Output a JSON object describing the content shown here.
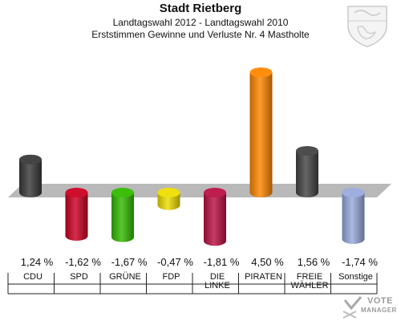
{
  "header": {
    "title": "Stadt Rietberg",
    "subtitle1": "Landtagswahl 2012 - Landtagswahl 2010",
    "subtitle2": "Erststimmen Gewinne und Verluste Nr. 4 Mastholte"
  },
  "logo": {
    "line1": "VOTE",
    "line2": "MANAGER"
  },
  "chart_data": {
    "type": "bar",
    "title": "Stadt Rietberg",
    "categories": [
      {
        "lines": [
          "CDU"
        ],
        "name": "CDU"
      },
      {
        "lines": [
          "SPD"
        ],
        "name": "SPD"
      },
      {
        "lines": [
          "GRÜNE"
        ],
        "name": "GRÜNE"
      },
      {
        "lines": [
          "FDP"
        ],
        "name": "FDP"
      },
      {
        "lines": [
          "DIE",
          "LINKE"
        ],
        "name": "DIE LINKE"
      },
      {
        "lines": [
          "PIRATEN"
        ],
        "name": "PIRATEN"
      },
      {
        "lines": [
          "FREIE",
          "WÄHLER"
        ],
        "name": "FREIE WÄHLER"
      },
      {
        "lines": [
          "Sonstige"
        ],
        "name": "Sonstige"
      }
    ],
    "values": [
      1.24,
      -1.62,
      -1.67,
      -0.47,
      -1.81,
      4.5,
      1.56,
      -1.74
    ],
    "value_labels": [
      "1,24 %",
      "-1,62 %",
      "-1,67 %",
      "-0,47 %",
      "-1,81 %",
      "4,50 %",
      "1,56 %",
      "-1,74 %"
    ],
    "colors": [
      "#3a3a3a",
      "#cc0022",
      "#33bb00",
      "#eedd00",
      "#bb1144",
      "#ff8800",
      "#444444",
      "#99aadd"
    ],
    "ylim": [
      -2.5,
      5
    ]
  }
}
